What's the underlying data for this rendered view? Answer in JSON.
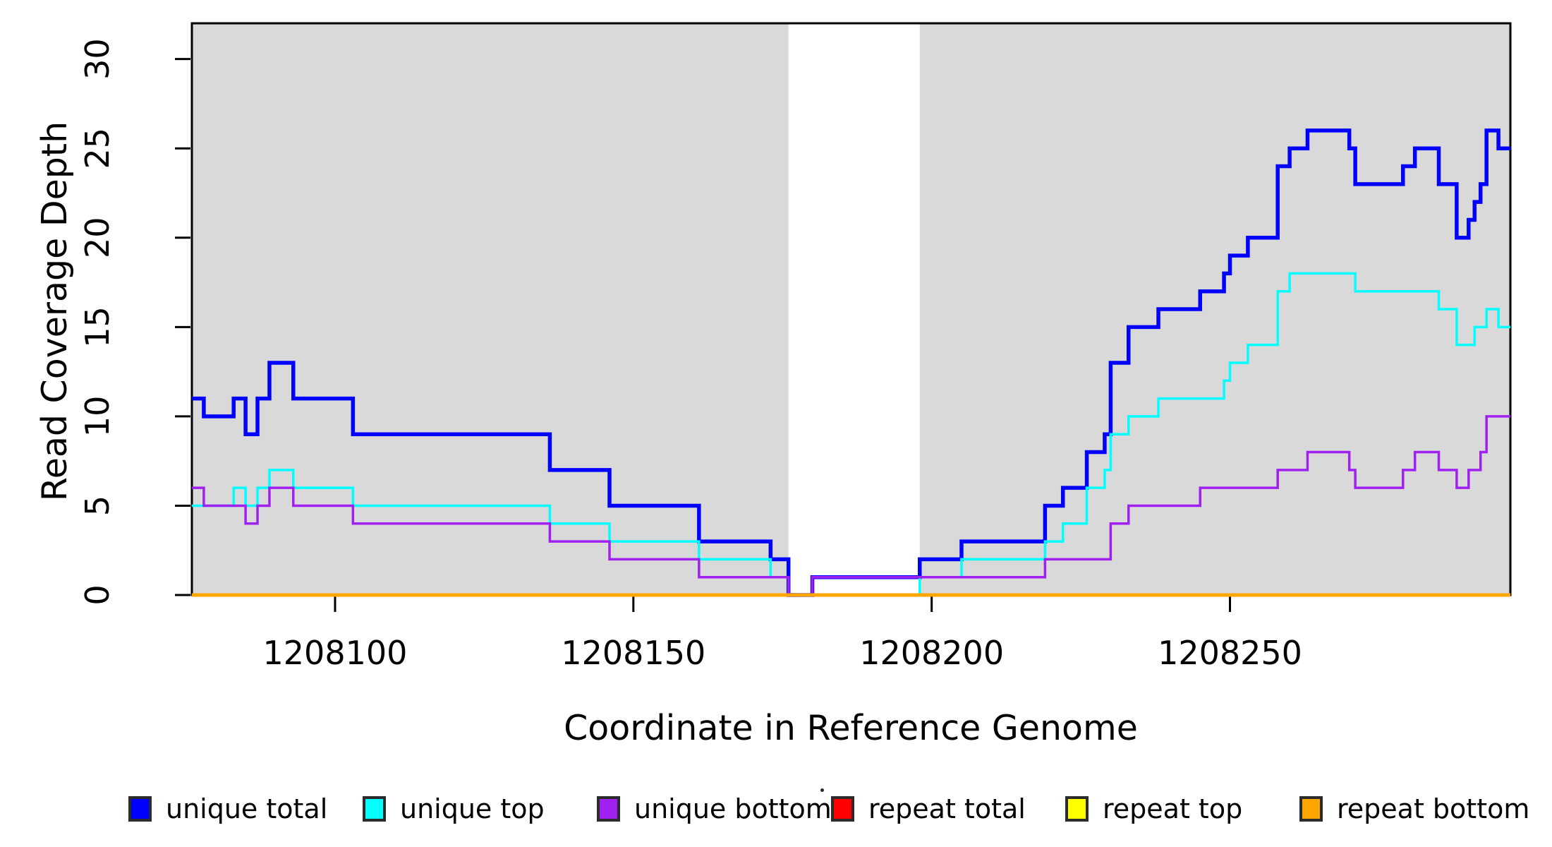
{
  "figure": {
    "background": "#ffffff"
  },
  "chart_data": {
    "type": "line",
    "subtype": "step-coverage",
    "title": "",
    "xlabel": "Coordinate in Reference Genome",
    "ylabel": "Read Coverage Depth",
    "xlim": [
      1208076,
      1208297
    ],
    "ylim": [
      0,
      32
    ],
    "x_ticks": [
      "1208100",
      "1208150",
      "1208200",
      "1208250"
    ],
    "x_tick_values": [
      1208100,
      1208150,
      1208200,
      1208250
    ],
    "y_ticks": [
      "0",
      "5",
      "10",
      "15",
      "20",
      "25",
      "30"
    ],
    "y_tick_values": [
      0,
      5,
      10,
      15,
      20,
      25,
      30
    ],
    "grid": false,
    "legend_position": "bottom",
    "colors": {
      "axis": "#000000",
      "shade": "#d9d9d9",
      "plot_background": "#ffffff"
    },
    "shade_regions": [
      [
        1208076,
        1208176
      ],
      [
        1208198,
        1208297
      ]
    ],
    "repeat_gap_region": [
      1208176,
      1208198
    ],
    "series": [
      {
        "name": "unique total",
        "color": "#0000ff",
        "line_width": 5.5,
        "segments": [
          [
            1208076,
            11
          ],
          [
            1208078,
            10
          ],
          [
            1208083,
            11
          ],
          [
            1208085,
            9
          ],
          [
            1208087,
            11
          ],
          [
            1208089,
            13
          ],
          [
            1208093,
            11
          ],
          [
            1208103,
            9
          ],
          [
            1208136,
            7
          ],
          [
            1208146,
            5
          ],
          [
            1208161,
            3
          ],
          [
            1208173,
            2
          ],
          [
            1208176,
            0
          ],
          [
            1208180,
            1
          ],
          [
            1208198,
            2
          ],
          [
            1208205,
            3
          ],
          [
            1208219,
            5
          ],
          [
            1208222,
            6
          ],
          [
            1208226,
            8
          ],
          [
            1208229,
            9
          ],
          [
            1208230,
            13
          ],
          [
            1208233,
            15
          ],
          [
            1208238,
            16
          ],
          [
            1208245,
            17
          ],
          [
            1208249,
            18
          ],
          [
            1208250,
            19
          ],
          [
            1208253,
            20
          ],
          [
            1208258,
            24
          ],
          [
            1208260,
            25
          ],
          [
            1208263,
            26
          ],
          [
            1208270,
            25
          ],
          [
            1208271,
            23
          ],
          [
            1208279,
            24
          ],
          [
            1208281,
            25
          ],
          [
            1208285,
            23
          ],
          [
            1208288,
            20
          ],
          [
            1208290,
            21
          ],
          [
            1208291,
            22
          ],
          [
            1208292,
            23
          ],
          [
            1208293,
            26
          ],
          [
            1208295,
            25
          ]
        ]
      },
      {
        "name": "unique top",
        "color": "#00ffff",
        "line_width": 3.5,
        "segments": [
          [
            1208076,
            5
          ],
          [
            1208083,
            6
          ],
          [
            1208085,
            5
          ],
          [
            1208087,
            6
          ],
          [
            1208089,
            7
          ],
          [
            1208093,
            6
          ],
          [
            1208103,
            5
          ],
          [
            1208136,
            4
          ],
          [
            1208146,
            3
          ],
          [
            1208161,
            2
          ],
          [
            1208173,
            1
          ],
          [
            1208176,
            0
          ],
          [
            1208198,
            1
          ],
          [
            1208205,
            2
          ],
          [
            1208219,
            3
          ],
          [
            1208222,
            4
          ],
          [
            1208226,
            6
          ],
          [
            1208229,
            7
          ],
          [
            1208230,
            9
          ],
          [
            1208233,
            10
          ],
          [
            1208238,
            11
          ],
          [
            1208249,
            12
          ],
          [
            1208250,
            13
          ],
          [
            1208253,
            14
          ],
          [
            1208258,
            17
          ],
          [
            1208260,
            18
          ],
          [
            1208271,
            17
          ],
          [
            1208285,
            16
          ],
          [
            1208288,
            14
          ],
          [
            1208291,
            15
          ],
          [
            1208293,
            16
          ],
          [
            1208295,
            15
          ]
        ]
      },
      {
        "name": "unique bottom",
        "color": "#a020f0",
        "line_width": 3.5,
        "segments": [
          [
            1208076,
            6
          ],
          [
            1208078,
            5
          ],
          [
            1208085,
            4
          ],
          [
            1208087,
            5
          ],
          [
            1208089,
            6
          ],
          [
            1208093,
            5
          ],
          [
            1208103,
            4
          ],
          [
            1208136,
            3
          ],
          [
            1208146,
            2
          ],
          [
            1208161,
            1
          ],
          [
            1208176,
            0
          ],
          [
            1208180,
            1
          ],
          [
            1208219,
            2
          ],
          [
            1208230,
            4
          ],
          [
            1208233,
            5
          ],
          [
            1208245,
            6
          ],
          [
            1208258,
            7
          ],
          [
            1208263,
            8
          ],
          [
            1208270,
            7
          ],
          [
            1208271,
            6
          ],
          [
            1208279,
            7
          ],
          [
            1208281,
            8
          ],
          [
            1208285,
            7
          ],
          [
            1208288,
            6
          ],
          [
            1208290,
            7
          ],
          [
            1208292,
            8
          ],
          [
            1208293,
            10
          ]
        ]
      },
      {
        "name": "repeat total",
        "color": "#ff0000",
        "line_width": 3,
        "segments": [
          [
            1208076,
            0
          ]
        ]
      },
      {
        "name": "repeat top",
        "color": "#ffff00",
        "line_width": 3,
        "segments": [
          [
            1208076,
            0
          ]
        ]
      },
      {
        "name": "repeat bottom",
        "color": "#ffa500",
        "line_width": 5,
        "segments": [
          [
            1208076,
            0
          ]
        ]
      }
    ],
    "legend": [
      {
        "label": "unique total",
        "color": "#0000ff"
      },
      {
        "label": "unique top",
        "color": "#00ffff"
      },
      {
        "label": "unique bottom",
        "color": "#a020f0"
      },
      {
        "label": "repeat total",
        "color": "#ff0000"
      },
      {
        "label": "repeat top",
        "color": "#ffff00"
      },
      {
        "label": "repeat bottom",
        "color": "#ffa500"
      }
    ]
  }
}
